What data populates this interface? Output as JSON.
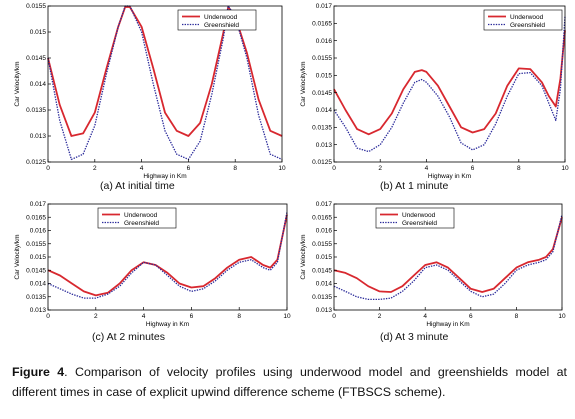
{
  "colors": {
    "underwood": "#d8282f",
    "greenshield": "#2a2a9a",
    "axis": "#000000"
  },
  "chart_data": [
    {
      "type": "line",
      "xlabel": "Highway in Km",
      "ylabel": "Car Velocity/km",
      "xlim": [
        0,
        10
      ],
      "ylim": [
        0.0125,
        0.0155
      ],
      "xticks": [
        "0",
        "2",
        "4",
        "6",
        "8",
        "10"
      ],
      "yticks": [
        "0.0125",
        "0.013",
        "0.0135",
        "0.014",
        "0.0145",
        "0.015",
        "0.0155"
      ],
      "legend": "top-right",
      "caption": "(a) At initial time",
      "series": [
        {
          "name": "Underwood",
          "style": "solid",
          "x": [
            0,
            0.5,
            1,
            1.5,
            2,
            2.5,
            3,
            3.3,
            3.5,
            4,
            4.5,
            5,
            5.5,
            6,
            6.5,
            7,
            7.5,
            7.7,
            8,
            8.5,
            9,
            9.5,
            10
          ],
          "y": [
            0.0145,
            0.0136,
            0.013,
            0.01305,
            0.01345,
            0.0143,
            0.0151,
            0.01548,
            0.01548,
            0.0151,
            0.0143,
            0.01345,
            0.0131,
            0.013,
            0.01325,
            0.014,
            0.015,
            0.01548,
            0.0153,
            0.0146,
            0.0137,
            0.0131,
            0.013
          ]
        },
        {
          "name": "Greenshield",
          "style": "dotted",
          "x": [
            0,
            0.5,
            1,
            1.5,
            2,
            2.5,
            3,
            3.3,
            3.5,
            4,
            4.5,
            5,
            5.5,
            6,
            6.5,
            7,
            7.5,
            7.7,
            8,
            8.5,
            9,
            9.5,
            10
          ],
          "y": [
            0.0145,
            0.0133,
            0.01255,
            0.01265,
            0.0132,
            0.0142,
            0.0151,
            0.0155,
            0.0155,
            0.015,
            0.014,
            0.0131,
            0.01265,
            0.01255,
            0.0129,
            0.0138,
            0.0149,
            0.0155,
            0.0153,
            0.0145,
            0.0134,
            0.01265,
            0.01255
          ]
        }
      ]
    },
    {
      "type": "line",
      "xlabel": "Highway in Km",
      "ylabel": "Car Velocity/km",
      "xlim": [
        0,
        10
      ],
      "ylim": [
        0.0125,
        0.017
      ],
      "xticks": [
        "0",
        "2",
        "4",
        "6",
        "8",
        "10"
      ],
      "yticks": [
        "0.0125",
        "0.013",
        "0.0135",
        "0.014",
        "0.0145",
        "0.015",
        "0.0155",
        "0.016",
        "0.0165",
        "0.017"
      ],
      "legend": "top-right",
      "caption": "(b) At 1 minute",
      "series": [
        {
          "name": "Underwood",
          "style": "solid",
          "x": [
            0,
            0.5,
            1,
            1.5,
            2,
            2.5,
            3,
            3.5,
            3.8,
            4,
            4.5,
            5,
            5.5,
            6,
            6.5,
            7,
            7.5,
            8,
            8.5,
            9,
            9.3,
            9.6,
            9.8,
            10
          ],
          "y": [
            0.0146,
            0.014,
            0.01345,
            0.0133,
            0.01345,
            0.0139,
            0.0146,
            0.0151,
            0.01515,
            0.0151,
            0.0147,
            0.0141,
            0.0135,
            0.01335,
            0.01345,
            0.0139,
            0.0147,
            0.0152,
            0.01518,
            0.0148,
            0.0144,
            0.0141,
            0.0149,
            0.0163
          ]
        },
        {
          "name": "Greenshield",
          "style": "dotted",
          "x": [
            0,
            0.5,
            1,
            1.5,
            2,
            2.5,
            3,
            3.5,
            3.8,
            4,
            4.5,
            5,
            5.5,
            6,
            6.5,
            7,
            7.5,
            8,
            8.5,
            9,
            9.3,
            9.6,
            9.8,
            10
          ],
          "y": [
            0.014,
            0.0135,
            0.0129,
            0.0128,
            0.013,
            0.0135,
            0.0142,
            0.0148,
            0.01488,
            0.0148,
            0.0144,
            0.0138,
            0.01305,
            0.01285,
            0.013,
            0.0136,
            0.0144,
            0.01505,
            0.01508,
            0.0147,
            0.0142,
            0.0137,
            0.0146,
            0.0167
          ]
        }
      ]
    },
    {
      "type": "line",
      "xlabel": "Highway in Km",
      "ylabel": "Car Velocity/km",
      "xlim": [
        0,
        10
      ],
      "ylim": [
        0.013,
        0.017
      ],
      "xticks": [
        "0",
        "2",
        "4",
        "6",
        "8",
        "10"
      ],
      "yticks": [
        "0.013",
        "0.0135",
        "0.014",
        "0.0145",
        "0.015",
        "0.0155",
        "0.016",
        "0.0165",
        "0.017"
      ],
      "legend": "top-left",
      "caption": "(c) At 2 minutes",
      "series": [
        {
          "name": "Underwood",
          "style": "solid",
          "x": [
            0,
            0.5,
            1,
            1.5,
            2,
            2.5,
            3,
            3.5,
            4,
            4.5,
            5,
            5.5,
            6,
            6.5,
            7,
            7.5,
            8,
            8.5,
            9,
            9.3,
            9.6,
            10
          ],
          "y": [
            0.0145,
            0.0143,
            0.014,
            0.0137,
            0.01355,
            0.01365,
            0.014,
            0.0145,
            0.0148,
            0.0147,
            0.0144,
            0.014,
            0.01385,
            0.0139,
            0.0142,
            0.0146,
            0.0149,
            0.015,
            0.0147,
            0.0146,
            0.0149,
            0.0166
          ]
        },
        {
          "name": "Greenshield",
          "style": "dotted",
          "x": [
            0,
            0.5,
            1,
            1.5,
            2,
            2.5,
            3,
            3.5,
            4,
            4.5,
            5,
            5.5,
            6,
            6.5,
            7,
            7.5,
            8,
            8.5,
            9,
            9.3,
            9.6,
            10
          ],
          "y": [
            0.014,
            0.0138,
            0.0136,
            0.01345,
            0.01345,
            0.0136,
            0.0139,
            0.0144,
            0.0148,
            0.0147,
            0.0143,
            0.0139,
            0.0137,
            0.0138,
            0.0141,
            0.0145,
            0.0148,
            0.0149,
            0.0146,
            0.0145,
            0.0148,
            0.0167
          ]
        }
      ]
    },
    {
      "type": "line",
      "xlabel": "Highway in Km",
      "ylabel": "Car Velocity/km",
      "xlim": [
        0,
        10
      ],
      "ylim": [
        0.013,
        0.017
      ],
      "xticks": [
        "0",
        "2",
        "4",
        "6",
        "8",
        "10"
      ],
      "yticks": [
        "0.013",
        "0.0135",
        "0.014",
        "0.0145",
        "0.015",
        "0.0155",
        "0.016",
        "0.0165",
        "0.017"
      ],
      "legend": "top-left",
      "caption": "(d) At 3 minute",
      "series": [
        {
          "name": "Underwood",
          "style": "solid",
          "x": [
            0,
            0.5,
            1,
            1.5,
            2,
            2.5,
            3,
            3.5,
            4,
            4.5,
            5,
            5.5,
            6,
            6.5,
            7,
            7.5,
            8,
            8.5,
            9,
            9.3,
            9.6,
            10
          ],
          "y": [
            0.0145,
            0.0144,
            0.0142,
            0.0139,
            0.0137,
            0.01368,
            0.0139,
            0.0143,
            0.0147,
            0.0148,
            0.0146,
            0.0142,
            0.0138,
            0.01368,
            0.0138,
            0.0142,
            0.0146,
            0.0148,
            0.0149,
            0.015,
            0.0153,
            0.0165
          ]
        },
        {
          "name": "Greenshield",
          "style": "dotted",
          "x": [
            0,
            0.5,
            1,
            1.5,
            2,
            2.5,
            3,
            3.5,
            4,
            4.5,
            5,
            5.5,
            6,
            6.5,
            7,
            7.5,
            8,
            8.5,
            9,
            9.3,
            9.6,
            10
          ],
          "y": [
            0.0139,
            0.0137,
            0.0135,
            0.0134,
            0.0134,
            0.01345,
            0.0137,
            0.0141,
            0.0146,
            0.0147,
            0.0145,
            0.0141,
            0.0137,
            0.0135,
            0.0136,
            0.014,
            0.0145,
            0.0147,
            0.0148,
            0.0149,
            0.0152,
            0.0166
          ]
        }
      ]
    }
  ],
  "figure_caption": {
    "label": "Figure 4",
    "text": ". Comparison of velocity profiles using underwood model and greenshields model at different times in case of explicit upwind difference scheme (FTBSCS scheme)."
  }
}
